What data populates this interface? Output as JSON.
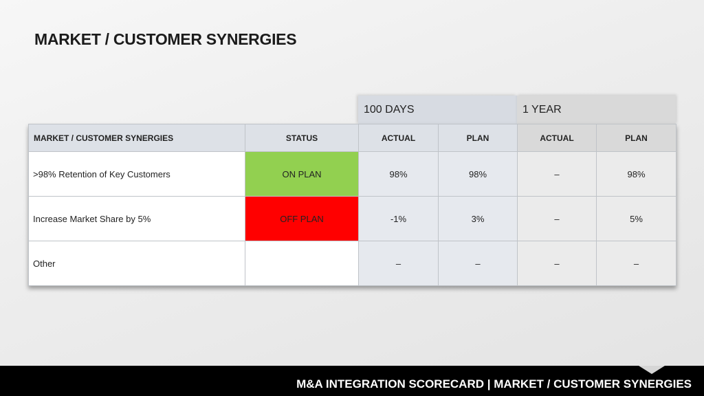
{
  "page": {
    "title": "MARKET / CUSTOMER SYNERGIES"
  },
  "groups": {
    "days100": "100 DAYS",
    "year1": "1 YEAR"
  },
  "table": {
    "headers": {
      "name": "MARKET / CUSTOMER SYNERGIES",
      "status": "STATUS",
      "actual_100": "ACTUAL",
      "plan_100": "PLAN",
      "actual_1yr": "ACTUAL",
      "plan_1yr": "PLAN"
    },
    "rows": [
      {
        "name": ">98% Retention of Key Customers",
        "status": "ON PLAN",
        "status_color": "#92d050",
        "actual_100": "98%",
        "plan_100": "98%",
        "actual_1yr": "–",
        "plan_1yr": "98%"
      },
      {
        "name": "Increase Market Share by 5%",
        "status": "OFF PLAN",
        "status_color": "#ff0000",
        "actual_100": "-1%",
        "plan_100": "3%",
        "actual_1yr": "–",
        "plan_1yr": "5%"
      },
      {
        "name": "Other",
        "status": "",
        "status_color": "#ffffff",
        "actual_100": "–",
        "plan_100": "–",
        "actual_1yr": "–",
        "plan_1yr": "–"
      }
    ]
  },
  "footer": {
    "text": "M&A INTEGRATION SCORECARD | MARKET / CUSTOMER SYNERGIES"
  }
}
